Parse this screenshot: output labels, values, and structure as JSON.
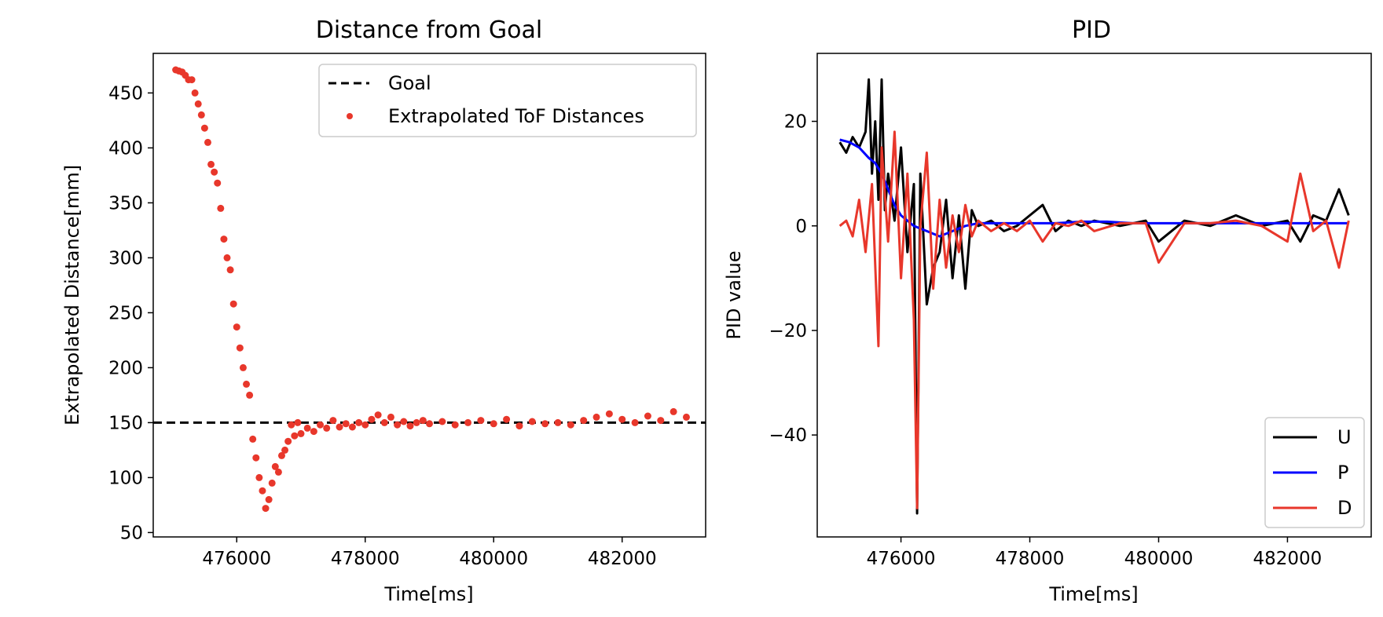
{
  "chart_data": [
    {
      "type": "scatter",
      "title": "Distance from Goal",
      "xlabel": "Time[ms]",
      "ylabel": "Extrapolated Distance[mm]",
      "xlim": [
        474700,
        483300
      ],
      "ylim": [
        46,
        486
      ],
      "xticks": [
        476000,
        478000,
        480000,
        482000
      ],
      "xtick_labels": [
        "476000",
        "478000",
        "480000",
        "482000"
      ],
      "yticks": [
        50,
        100,
        150,
        200,
        250,
        300,
        350,
        400,
        450
      ],
      "ytick_labels": [
        "50",
        "100",
        "150",
        "200",
        "250",
        "300",
        "350",
        "400",
        "450"
      ],
      "grid": false,
      "legend_position": "top-right",
      "goal": {
        "name": "Goal",
        "value": 150,
        "color": "#000000",
        "style": "dashed"
      },
      "series": [
        {
          "name": "Extrapolated ToF Distances",
          "color": "#e8372b",
          "points": [
            [
              475050,
              471
            ],
            [
              475100,
              470
            ],
            [
              475150,
              469
            ],
            [
              475200,
              466
            ],
            [
              475250,
              462
            ],
            [
              475300,
              462
            ],
            [
              475350,
              450
            ],
            [
              475400,
              440
            ],
            [
              475450,
              430
            ],
            [
              475500,
              418
            ],
            [
              475550,
              405
            ],
            [
              475600,
              385
            ],
            [
              475650,
              378
            ],
            [
              475700,
              368
            ],
            [
              475750,
              345
            ],
            [
              475800,
              317
            ],
            [
              475850,
              300
            ],
            [
              475900,
              289
            ],
            [
              475950,
              258
            ],
            [
              476000,
              237
            ],
            [
              476050,
              218
            ],
            [
              476100,
              200
            ],
            [
              476150,
              185
            ],
            [
              476200,
              175
            ],
            [
              476250,
              135
            ],
            [
              476300,
              118
            ],
            [
              476350,
              100
            ],
            [
              476400,
              88
            ],
            [
              476450,
              72
            ],
            [
              476500,
              80
            ],
            [
              476550,
              95
            ],
            [
              476600,
              110
            ],
            [
              476650,
              105
            ],
            [
              476700,
              120
            ],
            [
              476750,
              125
            ],
            [
              476800,
              133
            ],
            [
              476850,
              148
            ],
            [
              476900,
              138
            ],
            [
              476950,
              150
            ],
            [
              477000,
              140
            ],
            [
              477100,
              145
            ],
            [
              477200,
              142
            ],
            [
              477300,
              148
            ],
            [
              477400,
              145
            ],
            [
              477500,
              152
            ],
            [
              477600,
              146
            ],
            [
              477700,
              149
            ],
            [
              477800,
              146
            ],
            [
              477900,
              150
            ],
            [
              478000,
              148
            ],
            [
              478100,
              153
            ],
            [
              478200,
              157
            ],
            [
              478300,
              150
            ],
            [
              478400,
              155
            ],
            [
              478500,
              148
            ],
            [
              478600,
              151
            ],
            [
              478700,
              147
            ],
            [
              478800,
              150
            ],
            [
              478900,
              152
            ],
            [
              479000,
              149
            ],
            [
              479200,
              151
            ],
            [
              479400,
              148
            ],
            [
              479600,
              150
            ],
            [
              479800,
              152
            ],
            [
              480000,
              149
            ],
            [
              480200,
              153
            ],
            [
              480400,
              147
            ],
            [
              480600,
              151
            ],
            [
              480800,
              149
            ],
            [
              481000,
              150
            ],
            [
              481200,
              148
            ],
            [
              481400,
              152
            ],
            [
              481600,
              155
            ],
            [
              481800,
              158
            ],
            [
              482000,
              153
            ],
            [
              482200,
              150
            ],
            [
              482400,
              156
            ],
            [
              482600,
              152
            ],
            [
              482800,
              160
            ],
            [
              483000,
              155
            ]
          ]
        }
      ]
    },
    {
      "type": "line",
      "title": "PID",
      "xlabel": "Time[ms]",
      "ylabel": "PID value",
      "xlim": [
        474700,
        483300
      ],
      "ylim": [
        -59.5,
        33
      ],
      "xticks": [
        476000,
        478000,
        480000,
        482000
      ],
      "xtick_labels": [
        "476000",
        "478000",
        "480000",
        "482000"
      ],
      "yticks": [
        -40,
        -20,
        0,
        20
      ],
      "ytick_labels": [
        "−40",
        "−20",
        "0",
        "20"
      ],
      "grid": false,
      "legend_position": "bottom-right",
      "series": [
        {
          "name": "U",
          "color": "#000000",
          "points": [
            [
              475050,
              16
            ],
            [
              475150,
              14
            ],
            [
              475250,
              17
            ],
            [
              475350,
              15
            ],
            [
              475450,
              18
            ],
            [
              475500,
              28
            ],
            [
              475550,
              10
            ],
            [
              475600,
              20
            ],
            [
              475650,
              5
            ],
            [
              475700,
              28
            ],
            [
              475750,
              3
            ],
            [
              475800,
              10
            ],
            [
              475900,
              1
            ],
            [
              476000,
              15
            ],
            [
              476100,
              -5
            ],
            [
              476200,
              8
            ],
            [
              476250,
              -55
            ],
            [
              476300,
              10
            ],
            [
              476400,
              -15
            ],
            [
              476500,
              -8
            ],
            [
              476600,
              -5
            ],
            [
              476700,
              5
            ],
            [
              476800,
              -10
            ],
            [
              476900,
              2
            ],
            [
              477000,
              -12
            ],
            [
              477100,
              3
            ],
            [
              477200,
              0
            ],
            [
              477400,
              1
            ],
            [
              477600,
              -1
            ],
            [
              477800,
              0
            ],
            [
              478000,
              2
            ],
            [
              478200,
              4
            ],
            [
              478400,
              -1
            ],
            [
              478600,
              1
            ],
            [
              478800,
              0
            ],
            [
              479000,
              1
            ],
            [
              479400,
              0
            ],
            [
              479800,
              1
            ],
            [
              480000,
              -3
            ],
            [
              480400,
              1
            ],
            [
              480800,
              0
            ],
            [
              481200,
              2
            ],
            [
              481600,
              0
            ],
            [
              482000,
              1
            ],
            [
              482200,
              -3
            ],
            [
              482400,
              2
            ],
            [
              482600,
              1
            ],
            [
              482800,
              7
            ],
            [
              482950,
              2
            ]
          ]
        },
        {
          "name": "P",
          "color": "#0000ff",
          "points": [
            [
              475050,
              16.5
            ],
            [
              475200,
              16
            ],
            [
              475350,
              15
            ],
            [
              475500,
              13
            ],
            [
              475600,
              12
            ],
            [
              475700,
              10
            ],
            [
              475800,
              7
            ],
            [
              475900,
              4
            ],
            [
              476000,
              2
            ],
            [
              476200,
              0
            ],
            [
              476400,
              -1
            ],
            [
              476600,
              -2
            ],
            [
              476800,
              -1
            ],
            [
              477000,
              0
            ],
            [
              477200,
              0.5
            ],
            [
              477600,
              0.5
            ],
            [
              478000,
              0.5
            ],
            [
              478400,
              0.5
            ],
            [
              478800,
              0.8
            ],
            [
              479200,
              0.8
            ],
            [
              479600,
              0.5
            ],
            [
              480000,
              0.5
            ],
            [
              480400,
              0.5
            ],
            [
              480800,
              0.5
            ],
            [
              481200,
              0.5
            ],
            [
              481600,
              0.5
            ],
            [
              482000,
              0.5
            ],
            [
              482400,
              0.5
            ],
            [
              482800,
              0.5
            ],
            [
              482950,
              0.5
            ]
          ]
        },
        {
          "name": "D",
          "color": "#e8372b",
          "points": [
            [
              475050,
              0
            ],
            [
              475150,
              1
            ],
            [
              475250,
              -2
            ],
            [
              475350,
              5
            ],
            [
              475450,
              -5
            ],
            [
              475550,
              8
            ],
            [
              475650,
              -23
            ],
            [
              475700,
              15
            ],
            [
              475800,
              -3
            ],
            [
              475900,
              18
            ],
            [
              476000,
              -10
            ],
            [
              476100,
              10
            ],
            [
              476200,
              -18
            ],
            [
              476250,
              -54
            ],
            [
              476300,
              0
            ],
            [
              476400,
              14
            ],
            [
              476500,
              -12
            ],
            [
              476600,
              5
            ],
            [
              476700,
              -8
            ],
            [
              476800,
              2
            ],
            [
              476900,
              -5
            ],
            [
              477000,
              4
            ],
            [
              477100,
              -2
            ],
            [
              477200,
              1
            ],
            [
              477400,
              -1
            ],
            [
              477600,
              0.5
            ],
            [
              477800,
              -1
            ],
            [
              478000,
              1
            ],
            [
              478200,
              -3
            ],
            [
              478400,
              0.5
            ],
            [
              478600,
              0
            ],
            [
              478800,
              1
            ],
            [
              479000,
              -1
            ],
            [
              479400,
              0.5
            ],
            [
              479800,
              0.5
            ],
            [
              480000,
              -7
            ],
            [
              480400,
              0.5
            ],
            [
              480800,
              0.5
            ],
            [
              481200,
              1
            ],
            [
              481600,
              0
            ],
            [
              482000,
              -3
            ],
            [
              482200,
              10
            ],
            [
              482400,
              -1
            ],
            [
              482600,
              1
            ],
            [
              482800,
              -8
            ],
            [
              482950,
              1
            ]
          ]
        }
      ]
    }
  ]
}
